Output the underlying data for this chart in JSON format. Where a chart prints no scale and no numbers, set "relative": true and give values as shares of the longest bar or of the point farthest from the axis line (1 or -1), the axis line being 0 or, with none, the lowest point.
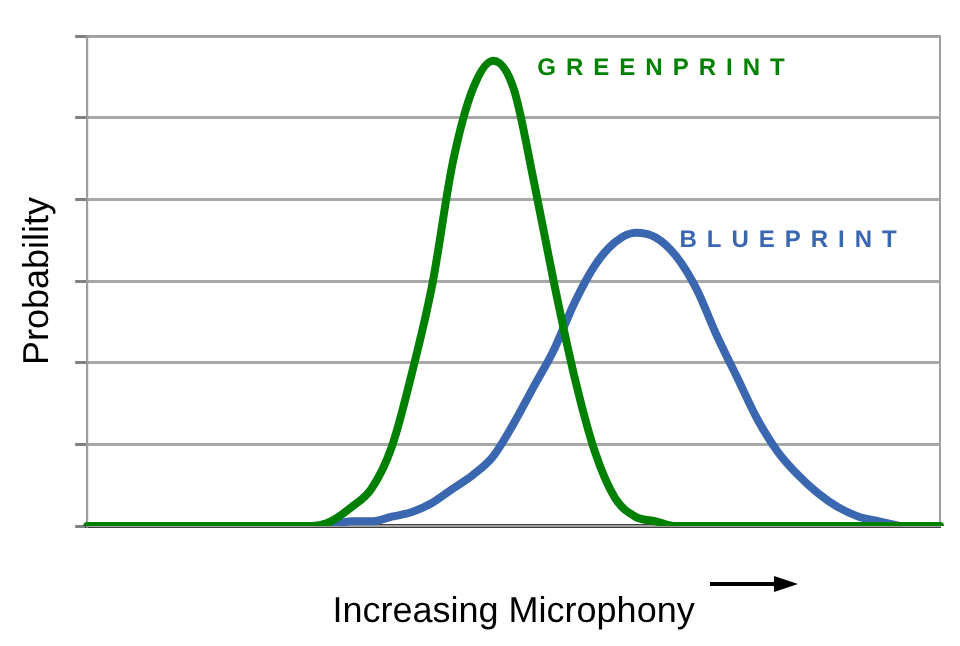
{
  "chart_data": {
    "type": "line",
    "xlabel": "Increasing Microphony",
    "ylabel": "Probability",
    "relative": true,
    "grid": "y",
    "legend": false,
    "marker": "none",
    "line_style": "solid",
    "categories": [
      null,
      null,
      null,
      null,
      null,
      null,
      null,
      null,
      null,
      null,
      null,
      null,
      null,
      null,
      null,
      null,
      null,
      null,
      null,
      null,
      null,
      null,
      null,
      null,
      null,
      null,
      null,
      null,
      null,
      null,
      null,
      null,
      null,
      null,
      null,
      null,
      null,
      null,
      null,
      null,
      null,
      null,
      null
    ],
    "series": [
      {
        "name": "BLUEPRINT",
        "color": "#3a67b0",
        "values": [
          null,
          null,
          null,
          null,
          null,
          null,
          null,
          null,
          null,
          null,
          null,
          null,
          0,
          0.01,
          0.01,
          0.02,
          0.03,
          0.05,
          0.08,
          0.11,
          0.15,
          0.22,
          0.3,
          0.38,
          0.48,
          0.56,
          0.61,
          0.63,
          0.62,
          0.58,
          0.51,
          0.41,
          0.32,
          0.23,
          0.16,
          0.11,
          0.07,
          0.04,
          0.02,
          0.01,
          0,
          null,
          null
        ]
      },
      {
        "name": "GREENPRINT",
        "color": "#008000",
        "values": [
          0,
          0,
          0,
          0,
          0,
          0,
          0,
          0,
          0,
          0,
          0,
          0,
          0.01,
          0.04,
          0.08,
          0.17,
          0.33,
          0.52,
          0.78,
          0.94,
          1,
          0.94,
          0.74,
          0.52,
          0.32,
          0.16,
          0.06,
          0.02,
          0.01,
          0,
          0,
          0,
          0,
          0,
          0,
          0,
          0,
          0,
          0,
          0,
          0,
          0,
          0
        ]
      }
    ]
  }
}
